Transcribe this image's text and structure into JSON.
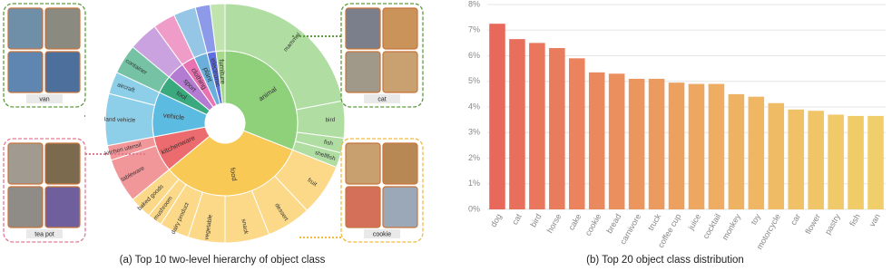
{
  "chart_data": [
    {
      "type": "sunburst",
      "title": "(a) Top 10 two-level hierarchy of object class",
      "nodes": [
        {
          "name": "animal",
          "color": "#8fd07a",
          "value": 31,
          "children": [
            {
              "name": "mammal",
              "value": 22
            },
            {
              "name": "bird",
              "value": 5
            },
            {
              "name": "fish",
              "value": 2
            },
            {
              "name": "shellfish",
              "value": 2
            }
          ]
        },
        {
          "name": "food",
          "color": "#f9c956",
          "value": 33,
          "children": [
            {
              "name": "fruit",
              "value": 7
            },
            {
              "name": "dessert",
              "value": 6
            },
            {
              "name": "snack",
              "value": 6
            },
            {
              "name": "vegetable",
              "value": 5
            },
            {
              "name": "dairy product",
              "value": 4
            },
            {
              "name": "mushroom",
              "value": 2
            },
            {
              "name": "baked goods",
              "value": 3
            }
          ]
        },
        {
          "name": "kitchenware",
          "color": "#ec6b6e",
          "value": 8,
          "children": [
            {
              "name": "tableware",
              "value": 6
            },
            {
              "name": "kitchen utensil",
              "value": 2
            }
          ]
        },
        {
          "name": "vehicle",
          "color": "#5cbbe0",
          "value": 10,
          "children": [
            {
              "name": "land vehicle",
              "value": 7
            },
            {
              "name": "aircraft",
              "value": 3
            }
          ]
        },
        {
          "name": "tool",
          "color": "#3aaa7e",
          "value": 4,
          "children": [
            {
              "name": "container",
              "value": 4
            }
          ]
        },
        {
          "name": "sport",
          "color": "#b47bd2",
          "value": 4,
          "children": []
        },
        {
          "name": "clothing",
          "color": "#e872b2",
          "value": 3,
          "children": []
        },
        {
          "name": "plant",
          "color": "#6aaedc",
          "value": 3,
          "children": []
        },
        {
          "name": "electronic",
          "color": "#5c6fe0",
          "value": 2,
          "children": []
        },
        {
          "name": "furniture",
          "color": "#a6d98c",
          "value": 2,
          "children": []
        }
      ],
      "callouts": [
        "van",
        "cat",
        "tea pot",
        "cookie"
      ]
    },
    {
      "type": "bar",
      "title": "(b) Top 20 object class distribution",
      "categories": [
        "dog",
        "cat",
        "bird",
        "horse",
        "cake",
        "cookie",
        "bread",
        "carnivore",
        "truck",
        "coffee cup",
        "juice",
        "cocktail",
        "monkey",
        "toy",
        "motorcycle",
        "car",
        "flower",
        "pastry",
        "fish",
        "van"
      ],
      "values": [
        7.25,
        6.65,
        6.5,
        6.3,
        5.9,
        5.35,
        5.3,
        5.1,
        5.1,
        4.95,
        4.9,
        4.9,
        4.5,
        4.4,
        4.15,
        3.9,
        3.85,
        3.7,
        3.65,
        3.65
      ],
      "colors": [
        "#e8685c",
        "#e86f5c",
        "#e9765d",
        "#e97c5d",
        "#ea835e",
        "#ea895e",
        "#eb8f5f",
        "#eb955f",
        "#ec9b60",
        "#eca160",
        "#eda761",
        "#eead62",
        "#eeb263",
        "#efb764",
        "#efbc65",
        "#f0c166",
        "#f0c567",
        "#f0c968",
        "#f0cc69",
        "#f0cf6a"
      ],
      "ylim": [
        0,
        8
      ],
      "yticks": [
        {
          "value": 0,
          "label": "0%"
        },
        {
          "value": 1,
          "label": "1%"
        },
        {
          "value": 2,
          "label": "2%"
        },
        {
          "value": 3,
          "label": "3%"
        },
        {
          "value": 4,
          "label": "4%"
        },
        {
          "value": 5,
          "label": "5%"
        },
        {
          "value": 6,
          "label": "6%"
        },
        {
          "value": 7,
          "label": "7%"
        },
        {
          "value": 8,
          "label": "8%"
        }
      ],
      "grid": true
    }
  ]
}
